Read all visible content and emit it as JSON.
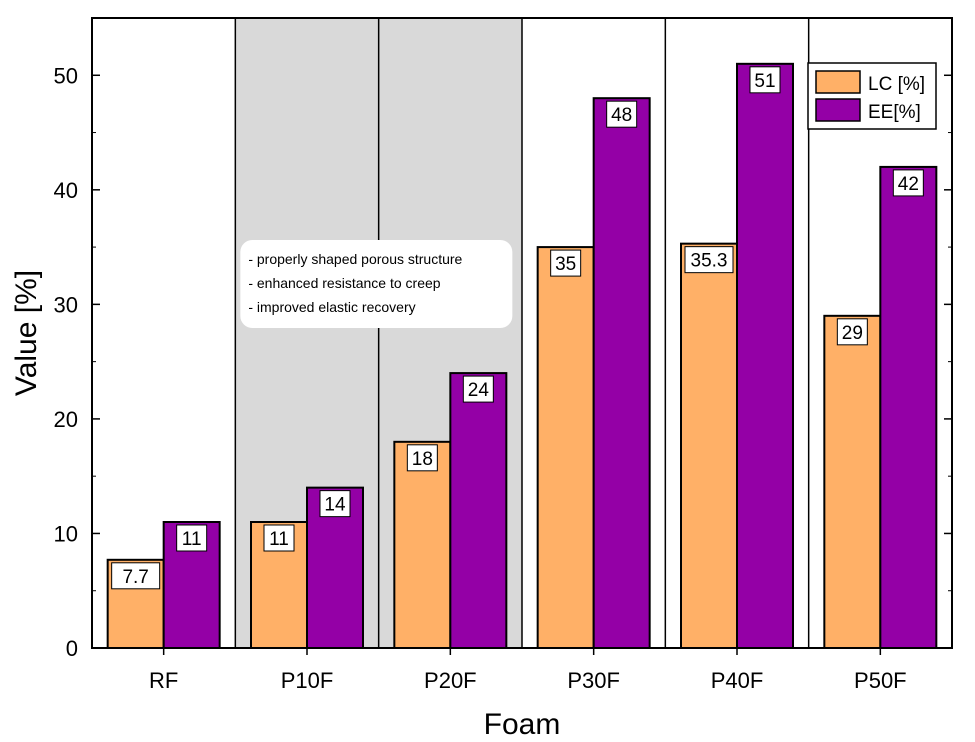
{
  "chart_data": {
    "type": "bar",
    "title": "",
    "xlabel": "Foam",
    "ylabel": "Value [%]",
    "ylim": [
      0,
      55
    ],
    "yticks": [
      0,
      10,
      20,
      30,
      40,
      50
    ],
    "categories": [
      "RF",
      "P10F",
      "P20F",
      "P30F",
      "P40F",
      "P50F"
    ],
    "series": [
      {
        "name": "LC [%]",
        "color": "#FFB067",
        "values": [
          7.7,
          11,
          18,
          35,
          35.3,
          29
        ],
        "labels": [
          "7.7",
          "11",
          "18",
          "35",
          "35.3",
          "29"
        ]
      },
      {
        "name": "EE[%]",
        "color": "#9400A6",
        "values": [
          11,
          14,
          24,
          48,
          51,
          42
        ],
        "labels": [
          "11",
          "14",
          "24",
          "48",
          "51",
          "42"
        ]
      }
    ],
    "legend_position": "top-right",
    "highlight": {
      "categories": [
        "P10F",
        "P20F"
      ],
      "color": "#D9D9D9"
    },
    "annotation": [
      "- properly shaped porous structure",
      "- enhanced resistance to creep",
      "- improved elastic recovery"
    ]
  }
}
